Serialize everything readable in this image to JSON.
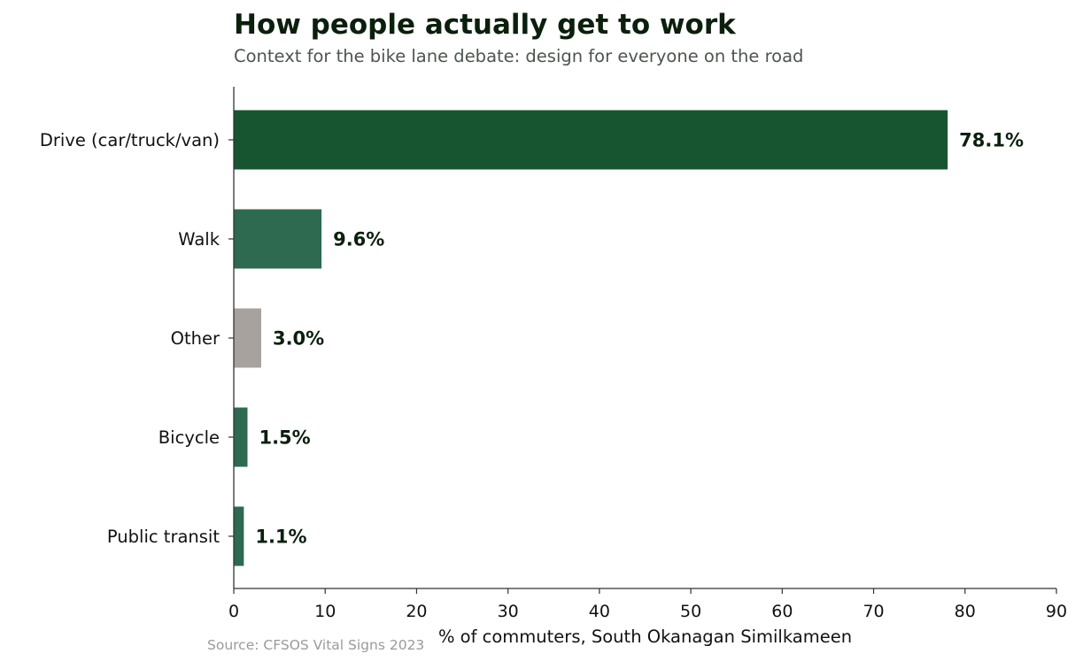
{
  "chart_data": {
    "type": "bar",
    "orientation": "horizontal",
    "title": "How people actually get to work",
    "subtitle": "Context for the bike lane debate: design for everyone on the road",
    "source": "Source: CFSOS Vital Signs 2023",
    "xlabel": "% of commuters, South Okanagan Similkameen",
    "ylabel": "",
    "xlim": [
      0,
      90
    ],
    "xticks": [
      0,
      10,
      20,
      30,
      40,
      50,
      60,
      70,
      80,
      90
    ],
    "grid": false,
    "legend": "none",
    "categories": [
      "Drive (car/truck/van)",
      "Walk",
      "Other",
      "Bicycle",
      "Public transit"
    ],
    "values": [
      78.1,
      9.6,
      3.0,
      1.5,
      1.1
    ],
    "value_labels": [
      "78.1%",
      "9.6%",
      "3.0%",
      "1.5%",
      "1.1%"
    ],
    "bar_colors": [
      "#175430",
      "#2d6a50",
      "#a8a29f",
      "#2d6a50",
      "#2d6a50"
    ]
  }
}
